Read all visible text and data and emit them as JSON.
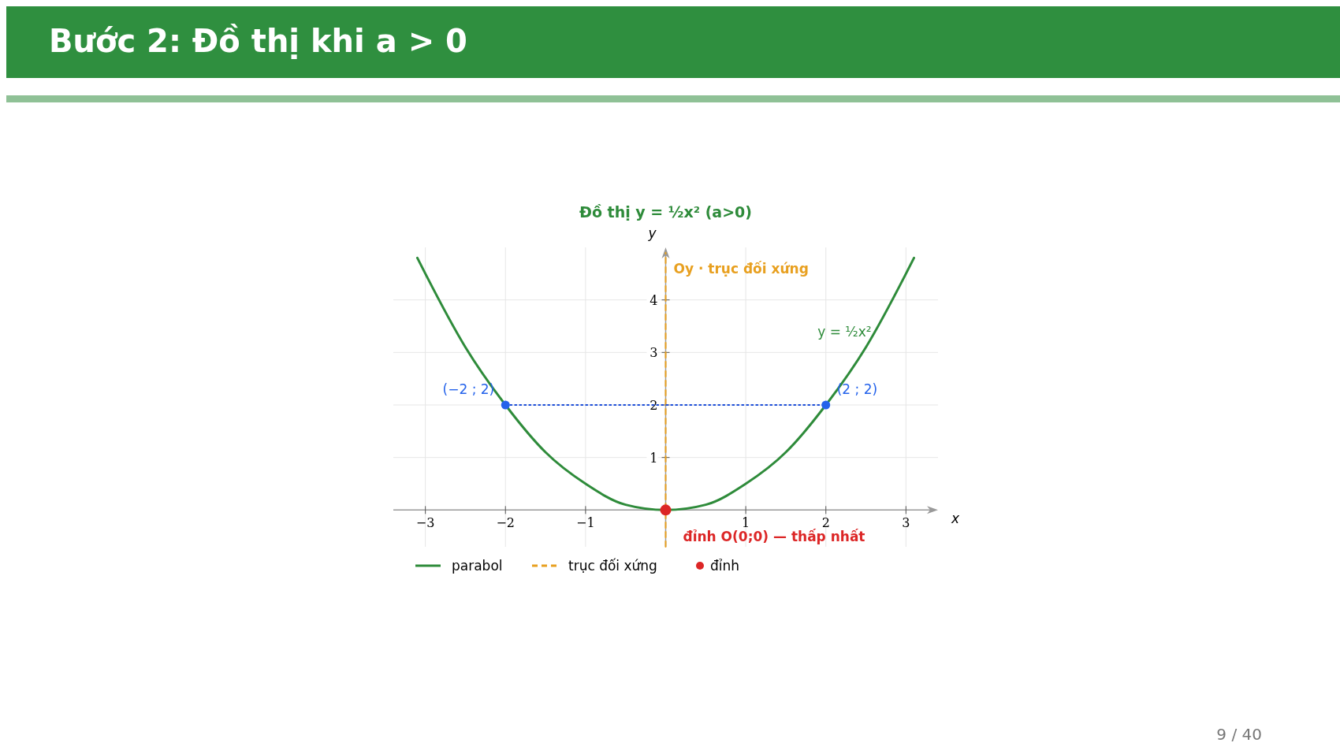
{
  "chart_data": {
    "type": "line",
    "title": "Bước 2: Đồ thị khi a > 0",
    "subtitle": "Đồ thị y = ½x²   (a>0)",
    "xlabel": "x",
    "ylabel": "y",
    "xlim": [
      -3.4,
      3.4
    ],
    "ylim": [
      -0.7,
      5
    ],
    "xticks": [
      {
        "value": -3,
        "label": "−3"
      },
      {
        "value": -2,
        "label": "−2"
      },
      {
        "value": -1,
        "label": "−1"
      },
      1,
      2,
      3
    ],
    "yticks": [
      1,
      2,
      3,
      4
    ],
    "grid": true,
    "legend": "bottom left",
    "series": [
      {
        "name": "parabol",
        "color": "#2e8b3a",
        "line_style": "solid",
        "x": [
          -3.1,
          -3,
          -2.5,
          -2,
          -1.5,
          -1,
          -0.5,
          0,
          0.5,
          1,
          1.5,
          2,
          2.5,
          3,
          3.1
        ],
        "values": [
          4.8,
          4.5,
          3.1,
          2,
          1.1,
          0.5,
          0.1,
          0,
          0.1,
          0.5,
          1.1,
          2,
          3.1,
          4.5,
          4.8
        ]
      },
      {
        "name": "trục đối xứng",
        "color": "#e8a020",
        "line_style": "dashed",
        "x": [
          0,
          0
        ],
        "values": [
          -0.7,
          4.9
        ]
      },
      {
        "color": "#1d4ed8",
        "line_style": "dotted",
        "x": [
          -2,
          2
        ],
        "values": [
          2,
          2
        ]
      },
      {
        "type": "scatter",
        "color": "#2563eb",
        "marker": "circle",
        "x": [
          -2,
          2
        ],
        "values": [
          2,
          2
        ]
      },
      {
        "name": "đỉnh",
        "type": "scatter",
        "color": "#dc2626",
        "marker": "circle",
        "x": [
          0
        ],
        "values": [
          0
        ]
      }
    ],
    "annotations": [
      {
        "text": "(−2 ; 2)",
        "x": -2,
        "y": 2
      },
      {
        "text": "(2 ; 2)",
        "x": 2,
        "y": 2
      },
      {
        "text": "y = ½x²",
        "x": 2.57,
        "y": 3.3
      },
      {
        "text": "Oy · trục đối xứng",
        "x": 0,
        "y": 4.5
      },
      {
        "text": "đỉnh O(0;0) — thấp nhất",
        "x": 0,
        "y": 0
      },
      "9 / 40"
    ]
  }
}
